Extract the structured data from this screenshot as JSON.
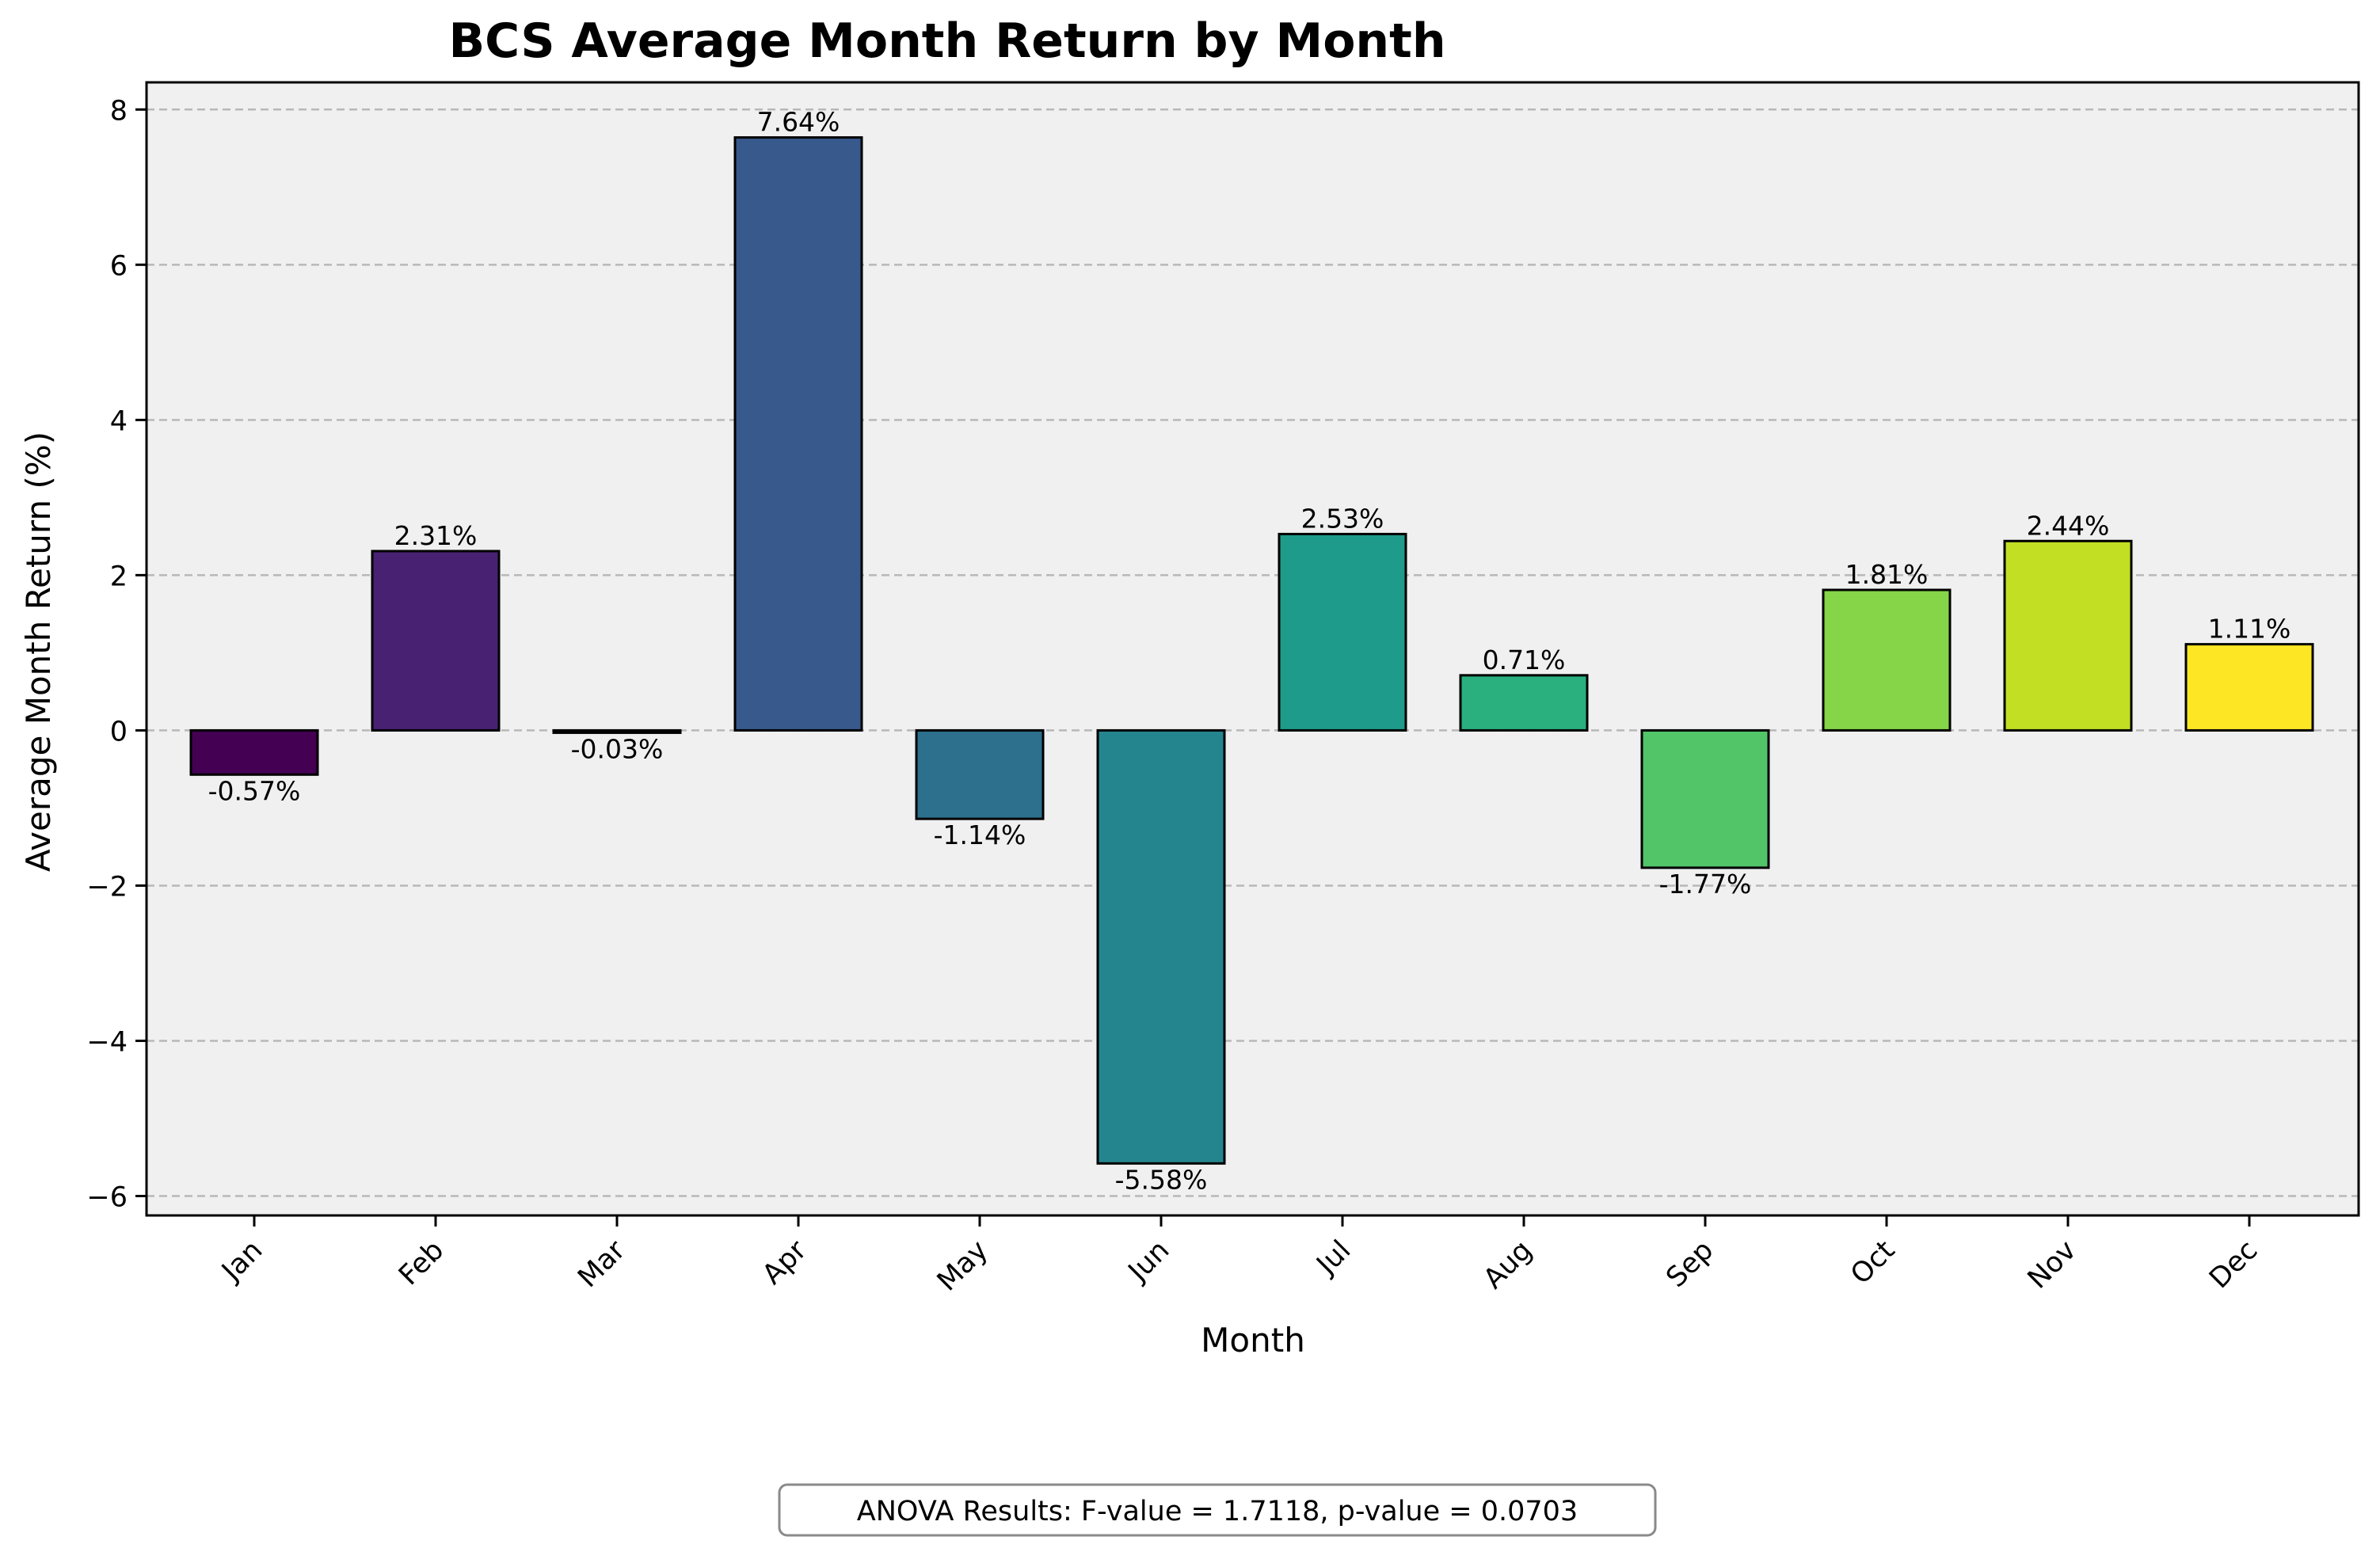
{
  "chart_data": {
    "type": "bar",
    "title": "BCS Average Month Return by Month",
    "xlabel": "Month",
    "ylabel": "Average Month Return (%)",
    "categories": [
      "Jan",
      "Feb",
      "Mar",
      "Apr",
      "May",
      "Jun",
      "Jul",
      "Aug",
      "Sep",
      "Oct",
      "Nov",
      "Dec"
    ],
    "values": [
      -0.57,
      2.31,
      -0.03,
      7.64,
      -1.14,
      -5.58,
      2.53,
      0.71,
      -1.77,
      1.81,
      2.44,
      1.11
    ],
    "value_labels": [
      "-0.57%",
      "2.31%",
      "-0.03%",
      "7.64%",
      "-1.14%",
      "-5.58%",
      "2.53%",
      "0.71%",
      "-1.77%",
      "1.81%",
      "2.44%",
      "1.11%"
    ],
    "bar_colors": [
      "#440154",
      "#482173",
      "#433e85",
      "#38598c",
      "#2d708e",
      "#25858e",
      "#1e9b8a",
      "#2ab07f",
      "#52c569",
      "#86d549",
      "#c2df23",
      "#fde725"
    ],
    "ylim": [
      -6.25,
      8.35
    ],
    "yticks": [
      -6,
      -4,
      -2,
      0,
      2,
      4,
      6,
      8
    ],
    "ytick_labels": [
      "−6",
      "−4",
      "−2",
      "0",
      "2",
      "4",
      "6",
      "8"
    ],
    "grid": "y-dashed",
    "plot_background": "#f0f0f0",
    "annotation": "ANOVA Results: F-value = 1.7118, p-value = 0.0703"
  }
}
